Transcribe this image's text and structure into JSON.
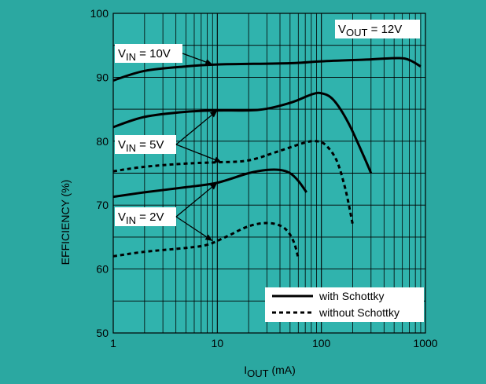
{
  "chart_data": {
    "type": "line",
    "xlabel": {
      "main": "I",
      "sub": "OUT",
      "unit": " (mA)"
    },
    "ylabel": "EFFICIENCY (%)",
    "x_scale": "log",
    "xlim": [
      1,
      1000
    ],
    "ylim": [
      50,
      100
    ],
    "x_ticks": [
      {
        "value": 1,
        "label": "1"
      },
      {
        "value": 10,
        "label": "10"
      },
      {
        "value": 100,
        "label": "100"
      },
      {
        "value": 1000,
        "label": "1000"
      }
    ],
    "y_ticks": [
      {
        "value": 50,
        "label": "50"
      },
      {
        "value": 60,
        "label": "60"
      },
      {
        "value": 70,
        "label": "70"
      },
      {
        "value": 80,
        "label": "80"
      },
      {
        "value": 90,
        "label": "90"
      },
      {
        "value": 100,
        "label": "100"
      }
    ],
    "grid": true,
    "colors": {
      "panel_bg": "#2ba8a1",
      "plot_bg": "#30b3ad",
      "grid": "#000000",
      "label_bg": "#ffffff",
      "line": "#000000"
    },
    "series": [
      {
        "vin": "10V",
        "schottky": true,
        "style": "solid",
        "points": [
          [
            1,
            89.5
          ],
          [
            2,
            91.0
          ],
          [
            5,
            91.7
          ],
          [
            10,
            92.0
          ],
          [
            50,
            92.2
          ],
          [
            100,
            92.5
          ],
          [
            300,
            92.8
          ],
          [
            550,
            93.0
          ],
          [
            700,
            92.7
          ],
          [
            900,
            91.7
          ]
        ]
      },
      {
        "vin": "5V",
        "schottky": true,
        "style": "solid",
        "points": [
          [
            1,
            82.2
          ],
          [
            2,
            83.8
          ],
          [
            5,
            84.6
          ],
          [
            10,
            84.8
          ],
          [
            25,
            84.9
          ],
          [
            50,
            86.0
          ],
          [
            80,
            87.3
          ],
          [
            100,
            87.5
          ],
          [
            130,
            86.5
          ],
          [
            180,
            83.0
          ],
          [
            250,
            78.0
          ],
          [
            300,
            75.0
          ]
        ]
      },
      {
        "vin": "5V",
        "schottky": false,
        "style": "dashed",
        "points": [
          [
            1,
            75.3
          ],
          [
            2,
            76.0
          ],
          [
            5,
            76.5
          ],
          [
            10,
            76.7
          ],
          [
            20,
            77.0
          ],
          [
            40,
            78.5
          ],
          [
            70,
            79.8
          ],
          [
            90,
            80.0
          ],
          [
            110,
            79.4
          ],
          [
            140,
            77.0
          ],
          [
            170,
            72.5
          ],
          [
            200,
            67.0
          ]
        ]
      },
      {
        "vin": "2V",
        "schottky": true,
        "style": "solid",
        "points": [
          [
            1,
            71.3
          ],
          [
            2,
            72.0
          ],
          [
            5,
            72.8
          ],
          [
            10,
            73.5
          ],
          [
            20,
            75.0
          ],
          [
            30,
            75.5
          ],
          [
            40,
            75.5
          ],
          [
            50,
            75.0
          ],
          [
            60,
            73.8
          ],
          [
            72,
            72.0
          ]
        ]
      },
      {
        "vin": "2V",
        "schottky": false,
        "style": "dashed",
        "points": [
          [
            1,
            62.0
          ],
          [
            2,
            62.7
          ],
          [
            5,
            63.3
          ],
          [
            8,
            63.8
          ],
          [
            12,
            65.0
          ],
          [
            20,
            66.7
          ],
          [
            30,
            67.2
          ],
          [
            40,
            66.8
          ],
          [
            48,
            65.8
          ],
          [
            55,
            64.0
          ],
          [
            60,
            61.7
          ]
        ]
      }
    ],
    "annotations": [
      {
        "id": "vin10",
        "main": "V",
        "sub": "IN",
        "rest": " = 10V",
        "arrow_to": [
          9,
          92.0
        ]
      },
      {
        "id": "vin5",
        "main": "V",
        "sub": "IN",
        "rest": " = 5V",
        "arrow_to": [
          [
            10,
            84.8
          ],
          [
            11,
            76.7
          ]
        ]
      },
      {
        "id": "vin2",
        "main": "V",
        "sub": "IN",
        "rest": " = 2V",
        "arrow_to": [
          [
            10,
            73.5
          ],
          [
            9,
            64.4
          ]
        ]
      },
      {
        "id": "vout",
        "main": "V",
        "sub": "OUT",
        "rest": " = 12V"
      }
    ],
    "legend": {
      "placement": "bottom-right",
      "entries": [
        {
          "label": "with Schottky",
          "style": "solid"
        },
        {
          "label": "without Schottky",
          "style": "dashed"
        }
      ]
    }
  }
}
